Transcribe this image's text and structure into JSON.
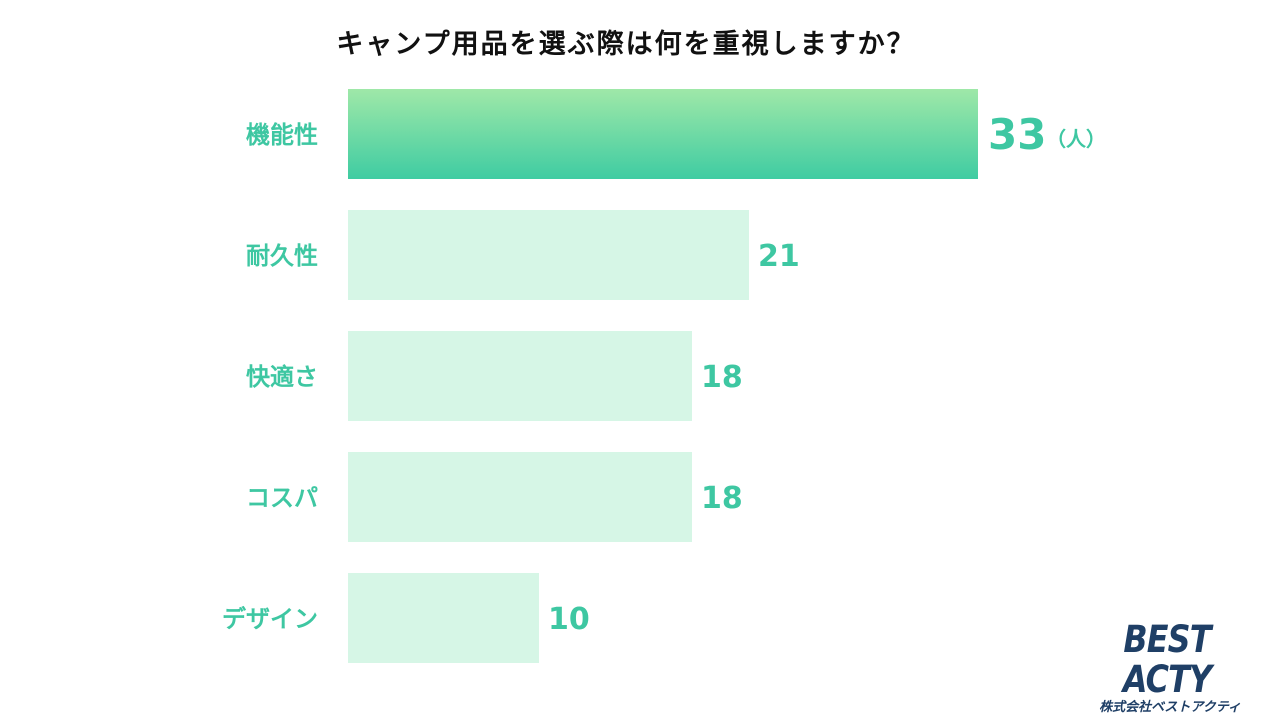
{
  "chart_data": {
    "type": "bar",
    "orientation": "horizontal",
    "title": "キャンプ用品を選ぶ際は何を重視しますか？",
    "categories": [
      "機能性",
      "耐久性",
      "快適さ",
      "コスパ",
      "デザイン"
    ],
    "values": [
      33,
      21,
      18,
      18,
      10
    ],
    "value_labels": [
      "33",
      "21",
      "18",
      "18",
      "10"
    ],
    "unit": "（人）",
    "xlim": [
      0,
      33
    ],
    "grid": false,
    "legend": "none",
    "colors": {
      "highlight_top": "#9fe8a8",
      "highlight_bottom": "#3fcca2",
      "bar": "#d6f6e6",
      "label": "#3ec7a2"
    }
  },
  "brand": {
    "name": "BEST ACTY",
    "subtitle": "株式会社ベストアクティ"
  }
}
